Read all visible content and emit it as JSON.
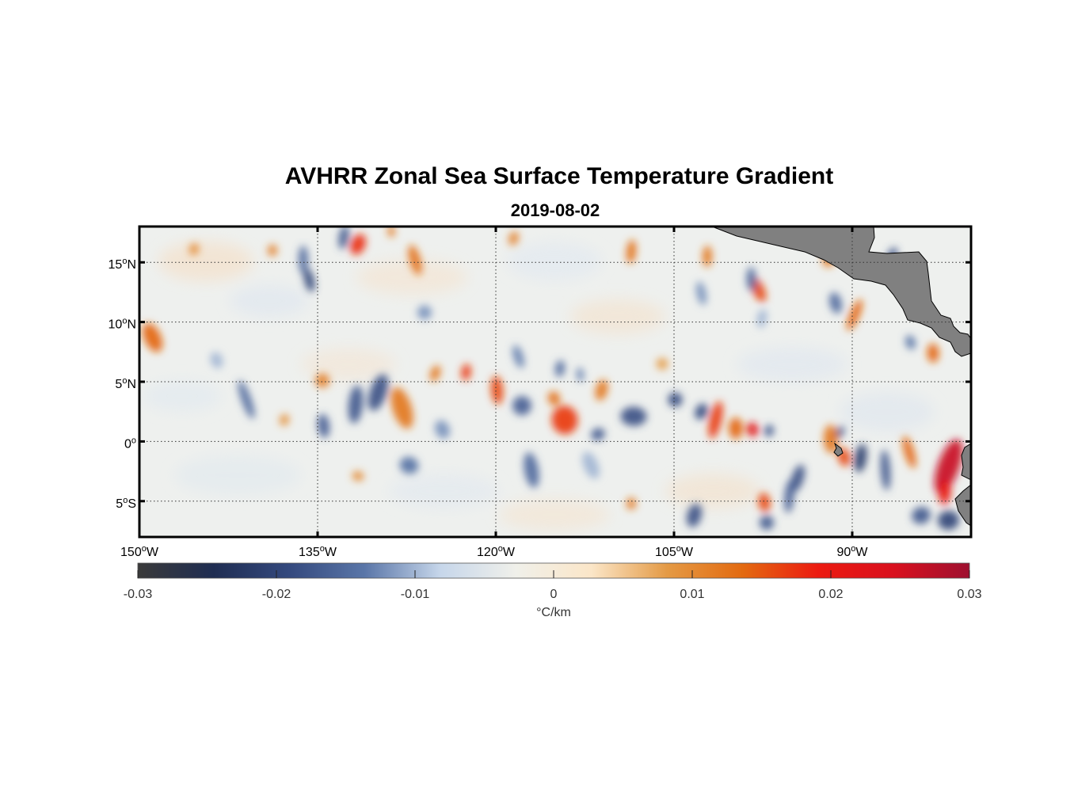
{
  "title": "AVHRR Zonal Sea Surface Temperature Gradient",
  "subtitle": "2019-08-02",
  "map": {
    "extent": {
      "lon_min": -150,
      "lon_max": -80,
      "lat_min": -8,
      "lat_max": 18
    },
    "lon_ticks": [
      {
        "value": -150,
        "num": "150",
        "hemi": "W"
      },
      {
        "value": -135,
        "num": "135",
        "hemi": "W"
      },
      {
        "value": -120,
        "num": "120",
        "hemi": "W"
      },
      {
        "value": -105,
        "num": "105",
        "hemi": "W"
      },
      {
        "value": -90,
        "num": "90",
        "hemi": "W"
      }
    ],
    "lat_ticks": [
      {
        "value": 15,
        "num": "15",
        "hemi": "N"
      },
      {
        "value": 10,
        "num": "10",
        "hemi": "N"
      },
      {
        "value": 5,
        "num": "5",
        "hemi": "N"
      },
      {
        "value": 0,
        "num": "0",
        "hemi": ""
      },
      {
        "value": -5,
        "num": "5",
        "hemi": "S"
      }
    ],
    "land_color": "#808080",
    "grid_style": "dotted"
  },
  "chart_data": {
    "type": "heatmap",
    "variable": "zonal SST gradient",
    "units_label": "°C/km",
    "clim": [
      -0.03,
      0.03
    ],
    "colorbar_ticks": [
      "-0.03",
      "-0.02",
      "-0.01",
      "0",
      "0.01",
      "0.02",
      "0.03"
    ],
    "colormap": [
      "#3a3a3a",
      "#1f2d52",
      "#34497e",
      "#5a76a8",
      "#c6d6ea",
      "#f0f0ea",
      "#fbe6c8",
      "#e49a45",
      "#e36a10",
      "#ec1a10",
      "#d9101e",
      "#9e1030"
    ],
    "features": [
      {
        "lon": -148.9,
        "lat": 8.7,
        "value": 0.014,
        "rx": 0.7,
        "ry": 1.3
      },
      {
        "lon": -134.6,
        "lat": 5.1,
        "value": 0.011,
        "rx": 0.6,
        "ry": 0.6
      },
      {
        "lon": -136.2,
        "lat": 15.2,
        "value": -0.015,
        "rx": 0.4,
        "ry": 1.2
      },
      {
        "lon": -135.7,
        "lat": 13.5,
        "value": -0.02,
        "rx": 0.4,
        "ry": 1.0
      },
      {
        "lon": -131.6,
        "lat": 16.5,
        "value": 0.018,
        "rx": 0.6,
        "ry": 0.9
      },
      {
        "lon": -132.8,
        "lat": 17.1,
        "value": -0.017,
        "rx": 0.4,
        "ry": 1.0
      },
      {
        "lon": -128.8,
        "lat": 17.6,
        "value": 0.012,
        "rx": 0.3,
        "ry": 0.5
      },
      {
        "lon": -126.8,
        "lat": 15.2,
        "value": 0.013,
        "rx": 0.45,
        "ry": 1.3
      },
      {
        "lon": -125.1,
        "lat": 5.7,
        "value": 0.012,
        "rx": 0.4,
        "ry": 0.7
      },
      {
        "lon": -122.5,
        "lat": 5.8,
        "value": 0.017,
        "rx": 0.4,
        "ry": 0.7
      },
      {
        "lon": -119.9,
        "lat": 4.3,
        "value": 0.016,
        "rx": 0.5,
        "ry": 1.2
      },
      {
        "lon": -127.9,
        "lat": 2.8,
        "value": 0.012,
        "rx": 0.8,
        "ry": 1.8
      },
      {
        "lon": -129.9,
        "lat": 4.1,
        "value": -0.018,
        "rx": 0.7,
        "ry": 1.6
      },
      {
        "lon": -131.8,
        "lat": 3.1,
        "value": -0.017,
        "rx": 0.6,
        "ry": 1.6
      },
      {
        "lon": -134.5,
        "lat": 1.3,
        "value": -0.016,
        "rx": 0.5,
        "ry": 1.0
      },
      {
        "lon": -141.0,
        "lat": 3.5,
        "value": -0.015,
        "rx": 0.4,
        "ry": 1.7
      },
      {
        "lon": -127.3,
        "lat": -2.0,
        "value": -0.014,
        "rx": 0.8,
        "ry": 0.7
      },
      {
        "lon": -117.8,
        "lat": 3.0,
        "value": -0.016,
        "rx": 0.8,
        "ry": 0.8
      },
      {
        "lon": -114.2,
        "lat": 1.8,
        "value": 0.017,
        "rx": 1.1,
        "ry": 1.2
      },
      {
        "lon": -115.1,
        "lat": 3.6,
        "value": 0.013,
        "rx": 0.5,
        "ry": 0.6
      },
      {
        "lon": -111.1,
        "lat": 4.3,
        "value": 0.012,
        "rx": 0.5,
        "ry": 0.9
      },
      {
        "lon": -108.4,
        "lat": 2.1,
        "value": -0.018,
        "rx": 1.1,
        "ry": 0.8
      },
      {
        "lon": -104.9,
        "lat": 3.5,
        "value": -0.019,
        "rx": 0.6,
        "ry": 0.6
      },
      {
        "lon": -111.4,
        "lat": 0.6,
        "value": -0.017,
        "rx": 0.6,
        "ry": 0.5
      },
      {
        "lon": -101.5,
        "lat": 1.8,
        "value": 0.017,
        "rx": 0.5,
        "ry": 1.6
      },
      {
        "lon": -99.8,
        "lat": 1.1,
        "value": 0.014,
        "rx": 0.6,
        "ry": 0.9
      },
      {
        "lon": -98.4,
        "lat": 1.0,
        "value": 0.022,
        "rx": 0.5,
        "ry": 0.6
      },
      {
        "lon": -102.7,
        "lat": 2.5,
        "value": -0.019,
        "rx": 0.5,
        "ry": 0.7
      },
      {
        "lon": -97.0,
        "lat": 0.9,
        "value": -0.017,
        "rx": 0.4,
        "ry": 0.5
      },
      {
        "lon": -91.8,
        "lat": 0.2,
        "value": 0.012,
        "rx": 0.6,
        "ry": 1.2
      },
      {
        "lon": -90.7,
        "lat": -1.3,
        "value": 0.016,
        "rx": 0.5,
        "ry": 0.8
      },
      {
        "lon": -91.0,
        "lat": 0.8,
        "value": -0.018,
        "rx": 0.3,
        "ry": 0.5
      },
      {
        "lon": -89.3,
        "lat": -1.4,
        "value": -0.021,
        "rx": 0.5,
        "ry": 1.2
      },
      {
        "lon": -87.2,
        "lat": -2.4,
        "value": -0.017,
        "rx": 0.4,
        "ry": 1.7
      },
      {
        "lon": -85.2,
        "lat": -0.9,
        "value": 0.014,
        "rx": 0.4,
        "ry": 1.4
      },
      {
        "lon": -81.9,
        "lat": -2.1,
        "value": 0.026,
        "rx": 0.9,
        "ry": 2.4
      },
      {
        "lon": -82.2,
        "lat": -4.3,
        "value": 0.02,
        "rx": 0.5,
        "ry": 1.0
      },
      {
        "lon": -81.9,
        "lat": -6.6,
        "value": -0.02,
        "rx": 0.9,
        "ry": 0.8
      },
      {
        "lon": -84.2,
        "lat": -6.2,
        "value": -0.017,
        "rx": 0.8,
        "ry": 0.7
      },
      {
        "lon": -94.6,
        "lat": -3.1,
        "value": -0.018,
        "rx": 0.5,
        "ry": 1.2
      },
      {
        "lon": -95.3,
        "lat": -4.6,
        "value": -0.016,
        "rx": 0.4,
        "ry": 1.4
      },
      {
        "lon": -97.4,
        "lat": -5.1,
        "value": 0.016,
        "rx": 0.5,
        "ry": 0.8
      },
      {
        "lon": -97.2,
        "lat": -6.8,
        "value": -0.017,
        "rx": 0.6,
        "ry": 0.6
      },
      {
        "lon": -103.3,
        "lat": -6.2,
        "value": -0.018,
        "rx": 0.6,
        "ry": 1.0
      },
      {
        "lon": -108.6,
        "lat": -5.2,
        "value": 0.012,
        "rx": 0.4,
        "ry": 0.5
      },
      {
        "lon": -117.0,
        "lat": -2.4,
        "value": -0.015,
        "rx": 0.6,
        "ry": 1.5
      },
      {
        "lon": -112.0,
        "lat": -2.0,
        "value": -0.01,
        "rx": 0.6,
        "ry": 1.2
      },
      {
        "lon": -131.6,
        "lat": -2.9,
        "value": 0.01,
        "rx": 0.5,
        "ry": 0.4
      },
      {
        "lon": -102.2,
        "lat": 15.5,
        "value": 0.012,
        "rx": 0.4,
        "ry": 0.9
      },
      {
        "lon": -102.7,
        "lat": 12.4,
        "value": -0.012,
        "rx": 0.4,
        "ry": 1.0
      },
      {
        "lon": -97.9,
        "lat": 12.7,
        "value": 0.016,
        "rx": 0.5,
        "ry": 1.1
      },
      {
        "lon": -97.6,
        "lat": 10.3,
        "value": -0.01,
        "rx": 0.4,
        "ry": 0.8
      },
      {
        "lon": -98.5,
        "lat": 13.6,
        "value": -0.015,
        "rx": 0.4,
        "ry": 1.0
      },
      {
        "lon": -91.4,
        "lat": 11.6,
        "value": -0.015,
        "rx": 0.5,
        "ry": 0.9
      },
      {
        "lon": -89.8,
        "lat": 10.6,
        "value": 0.014,
        "rx": 0.4,
        "ry": 1.4
      },
      {
        "lon": -92.0,
        "lat": 15.2,
        "value": 0.012,
        "rx": 0.5,
        "ry": 0.6
      },
      {
        "lon": -83.2,
        "lat": 7.4,
        "value": 0.014,
        "rx": 0.5,
        "ry": 0.8
      },
      {
        "lon": -85.1,
        "lat": 8.3,
        "value": -0.014,
        "rx": 0.4,
        "ry": 0.6
      },
      {
        "lon": -86.7,
        "lat": 15.4,
        "value": -0.018,
        "rx": 0.4,
        "ry": 0.9
      },
      {
        "lon": -114.6,
        "lat": 6.1,
        "value": -0.015,
        "rx": 0.4,
        "ry": 0.7
      },
      {
        "lon": -112.9,
        "lat": 5.6,
        "value": -0.013,
        "rx": 0.3,
        "ry": 0.6
      },
      {
        "lon": -118.1,
        "lat": 7.1,
        "value": -0.013,
        "rx": 0.4,
        "ry": 1.0
      },
      {
        "lon": -118.5,
        "lat": 17.0,
        "value": 0.011,
        "rx": 0.4,
        "ry": 0.6
      },
      {
        "lon": -108.6,
        "lat": 15.9,
        "value": 0.013,
        "rx": 0.4,
        "ry": 1.0
      },
      {
        "lon": -126.0,
        "lat": 10.8,
        "value": -0.012,
        "rx": 0.6,
        "ry": 0.6
      },
      {
        "lon": -143.5,
        "lat": 6.8,
        "value": -0.01,
        "rx": 0.5,
        "ry": 0.7
      },
      {
        "lon": -145.4,
        "lat": 16.1,
        "value": 0.01,
        "rx": 0.4,
        "ry": 0.5
      },
      {
        "lon": -138.8,
        "lat": 16.0,
        "value": 0.011,
        "rx": 0.4,
        "ry": 0.5
      },
      {
        "lon": -106.0,
        "lat": 6.5,
        "value": 0.008,
        "rx": 0.5,
        "ry": 0.5
      },
      {
        "lon": -124.5,
        "lat": 1.0,
        "value": -0.012,
        "rx": 0.6,
        "ry": 0.8
      },
      {
        "lon": -137.8,
        "lat": 1.8,
        "value": 0.009,
        "rx": 0.4,
        "ry": 0.5
      }
    ]
  },
  "colorbar": {
    "tick_labels": [
      "-0.03",
      "-0.02",
      "-0.01",
      "0",
      "0.01",
      "0.02",
      "0.03"
    ],
    "units": "°C/km"
  }
}
